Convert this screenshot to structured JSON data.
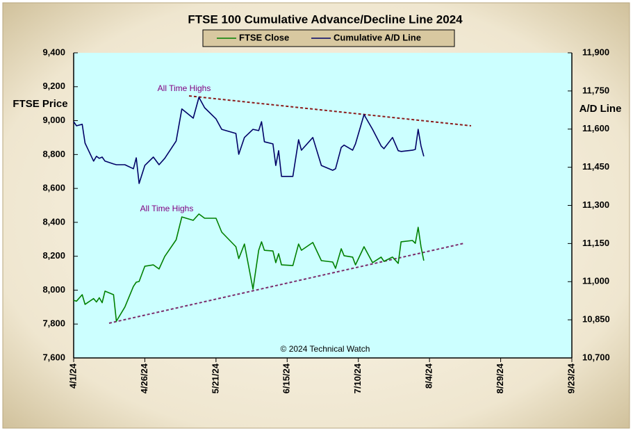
{
  "chart_data": {
    "type": "line",
    "title": "FTSE 100 Cumulative Advance/Decline Line 2024",
    "y_label": "FTSE Price",
    "y2_label": "A/D Line",
    "annotations": [
      "All Time Highs",
      "All Time Highs",
      "© 2024 Technical Watch"
    ],
    "x": [
      "2024-04-01",
      "2024-04-02",
      "2024-04-04",
      "2024-04-05",
      "2024-04-08",
      "2024-04-09",
      "2024-04-10",
      "2024-04-11",
      "2024-04-12",
      "2024-04-15",
      "2024-04-16",
      "2024-04-19",
      "2024-04-22",
      "2024-04-23",
      "2024-04-24",
      "2024-04-26",
      "2024-04-29",
      "2024-05-01",
      "2024-05-03",
      "2024-05-07",
      "2024-05-09",
      "2024-05-13",
      "2024-05-15",
      "2024-05-17",
      "2024-05-21",
      "2024-05-23",
      "2024-05-28",
      "2024-05-29",
      "2024-05-31",
      "2024-06-03",
      "2024-06-05",
      "2024-06-06",
      "2024-06-07",
      "2024-06-10",
      "2024-06-11",
      "2024-06-12",
      "2024-06-13",
      "2024-06-17",
      "2024-06-19",
      "2024-06-20",
      "2024-06-24",
      "2024-06-27",
      "2024-07-01",
      "2024-07-02",
      "2024-07-04",
      "2024-07-05",
      "2024-07-08",
      "2024-07-09",
      "2024-07-12",
      "2024-07-15",
      "2024-07-18",
      "2024-07-19",
      "2024-07-22",
      "2024-07-24",
      "2024-07-25",
      "2024-07-29",
      "2024-07-30",
      "2024-07-31",
      "2024-08-01",
      "2024-08-02"
    ],
    "series": [
      {
        "name": "FTSE Close",
        "color": "#008000",
        "axis": "y",
        "values": [
          7940,
          7935,
          7973,
          7916,
          7950,
          7930,
          7955,
          7926,
          7994,
          7973,
          7817,
          7900,
          8022,
          8047,
          8051,
          8141,
          8149,
          8125,
          8199,
          8297,
          8432,
          8412,
          8449,
          8424,
          8424,
          8342,
          8256,
          8186,
          8272,
          8006,
          8235,
          8285,
          8235,
          8231,
          8162,
          8215,
          8149,
          8145,
          8272,
          8235,
          8281,
          8174,
          8166,
          8129,
          8244,
          8203,
          8195,
          8149,
          8256,
          8162,
          8195,
          8170,
          8195,
          8158,
          8285,
          8293,
          8276,
          8371,
          8256,
          8174
        ]
      },
      {
        "name": "Cumulative A/D Line",
        "color": "#000066",
        "axis": "y2",
        "values": [
          11629,
          11613,
          11619,
          11545,
          11474,
          11493,
          11485,
          11490,
          11474,
          11463,
          11460,
          11460,
          11444,
          11487,
          11386,
          11457,
          11490,
          11460,
          11485,
          11553,
          11679,
          11643,
          11725,
          11684,
          11640,
          11599,
          11583,
          11501,
          11567,
          11599,
          11594,
          11629,
          11550,
          11542,
          11457,
          11515,
          11414,
          11414,
          11558,
          11517,
          11567,
          11457,
          11438,
          11444,
          11528,
          11537,
          11517,
          11542,
          11657,
          11599,
          11534,
          11523,
          11567,
          11515,
          11512,
          11517,
          11520,
          11599,
          11534,
          11493
        ]
      }
    ],
    "xlim": [
      "2024-04-01",
      "2024-09-23"
    ],
    "xticks": [
      {
        "value": "2024-04-01",
        "label": "4/1/24"
      },
      {
        "value": "2024-04-26",
        "label": "4/26/24"
      },
      {
        "value": "2024-05-21",
        "label": "5/21/24"
      },
      {
        "value": "2024-06-15",
        "label": "6/15/24"
      },
      {
        "value": "2024-07-10",
        "label": "7/10/24"
      },
      {
        "value": "2024-08-04",
        "label": "8/4/24"
      },
      {
        "value": "2024-08-29",
        "label": "8/29/24"
      },
      {
        "value": "2024-09-23",
        "label": "9/23/24"
      }
    ],
    "ylim": [
      7600,
      9400
    ],
    "yticks": [
      {
        "value": 7600,
        "label": "7,600"
      },
      {
        "value": 7800,
        "label": "7,800"
      },
      {
        "value": 8000,
        "label": "8,000"
      },
      {
        "value": 8200,
        "label": "8,200"
      },
      {
        "value": 8400,
        "label": "8,400"
      },
      {
        "value": 8600,
        "label": "8,600"
      },
      {
        "value": 8800,
        "label": "8,800"
      },
      {
        "value": 9000,
        "label": "9,000"
      },
      {
        "value": 9200,
        "label": "9,200"
      },
      {
        "value": 9400,
        "label": "9,400"
      }
    ],
    "y2lim": [
      10700,
      11900
    ],
    "y2ticks": [
      {
        "value": 10700,
        "label": "10,700"
      },
      {
        "value": 10850,
        "label": "10,850"
      },
      {
        "value": 11000,
        "label": "11,000"
      },
      {
        "value": 11150,
        "label": "11,150"
      },
      {
        "value": 11300,
        "label": "11,300"
      },
      {
        "value": 11450,
        "label": "11,450"
      },
      {
        "value": 11600,
        "label": "11,600"
      },
      {
        "value": 11750,
        "label": "11,750"
      },
      {
        "value": 11900,
        "label": "11,900"
      }
    ],
    "grid": false,
    "legend": "top",
    "plot_background": "#ccffff"
  }
}
